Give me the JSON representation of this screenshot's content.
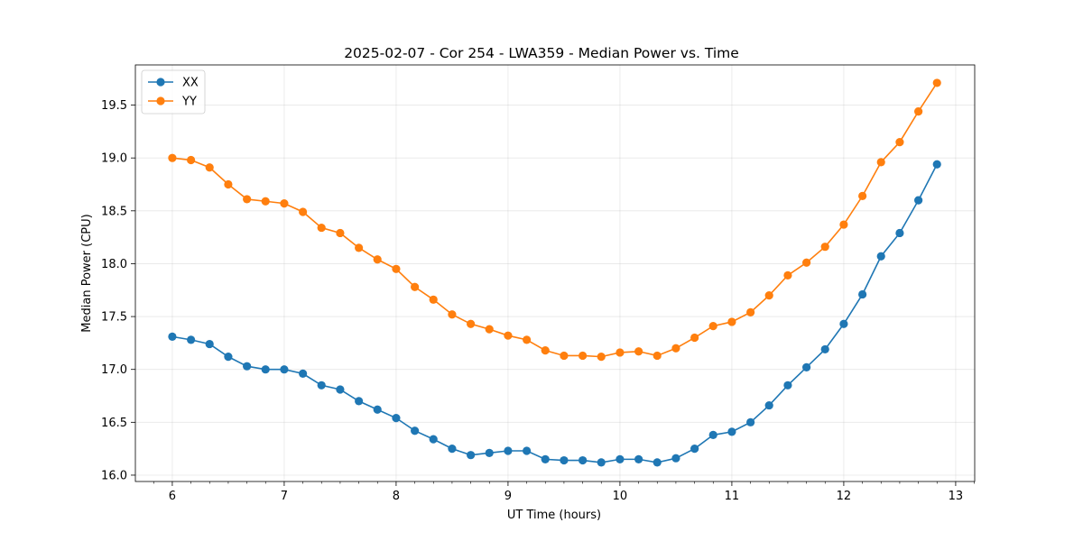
{
  "chart_data": {
    "type": "line",
    "title": "2025-02-07 - Cor 254 - LWA359 - Median Power vs. Time",
    "xlabel": "UT Time (hours)",
    "ylabel": "Median Power (CPU)",
    "xlim": [
      5.67,
      13.17
    ],
    "ylim": [
      15.94,
      19.88
    ],
    "xticks": [
      6,
      7,
      8,
      9,
      10,
      11,
      12,
      13
    ],
    "yticks": [
      16.0,
      16.5,
      17.0,
      17.5,
      18.0,
      18.5,
      19.0,
      19.5
    ],
    "ytick_labels": [
      "16.0",
      "16.5",
      "17.0",
      "17.5",
      "18.0",
      "18.5",
      "19.0",
      "19.5"
    ],
    "grid": true,
    "legend_position": "upper-left",
    "x": [
      6.0,
      6.167,
      6.333,
      6.5,
      6.667,
      6.833,
      7.0,
      7.167,
      7.333,
      7.5,
      7.667,
      7.833,
      8.0,
      8.167,
      8.333,
      8.5,
      8.667,
      8.833,
      9.0,
      9.167,
      9.333,
      9.5,
      9.667,
      9.833,
      10.0,
      10.167,
      10.333,
      10.5,
      10.667,
      10.833,
      11.0,
      11.167,
      11.333,
      11.5,
      11.667,
      11.833,
      12.0,
      12.167,
      12.333,
      12.5,
      12.667,
      12.833
    ],
    "series": [
      {
        "name": "XX",
        "color": "#1f77b4",
        "values": [
          17.31,
          17.28,
          17.24,
          17.12,
          17.03,
          17.0,
          17.0,
          16.96,
          16.85,
          16.81,
          16.7,
          16.62,
          16.54,
          16.42,
          16.34,
          16.25,
          16.19,
          16.21,
          16.23,
          16.23,
          16.15,
          16.14,
          16.14,
          16.12,
          16.15,
          16.15,
          16.12,
          16.16,
          16.25,
          16.38,
          16.41,
          16.5,
          16.66,
          16.85,
          17.02,
          17.19,
          17.43,
          17.71,
          18.07,
          18.29,
          18.6,
          18.94
        ]
      },
      {
        "name": "YY",
        "color": "#ff7f0e",
        "values": [
          19.0,
          18.98,
          18.91,
          18.75,
          18.61,
          18.59,
          18.57,
          18.49,
          18.34,
          18.29,
          18.15,
          18.04,
          17.95,
          17.78,
          17.66,
          17.52,
          17.43,
          17.38,
          17.32,
          17.28,
          17.18,
          17.13,
          17.13,
          17.12,
          17.16,
          17.17,
          17.13,
          17.2,
          17.3,
          17.41,
          17.45,
          17.54,
          17.7,
          17.89,
          18.01,
          18.16,
          18.37,
          18.64,
          18.96,
          19.15,
          19.44,
          19.71
        ]
      }
    ]
  }
}
